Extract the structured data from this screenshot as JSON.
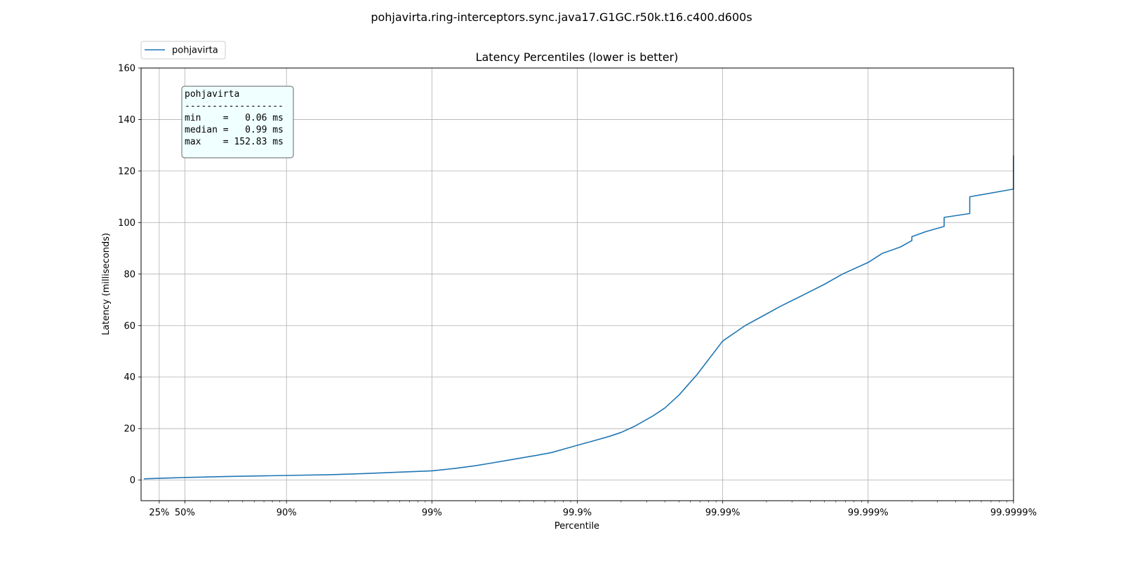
{
  "figure": {
    "suptitle": "pohjavirta.ring-interceptors.sync.java17.G1GC.r50k.t16.c400.d600s"
  },
  "chart_data": {
    "type": "line",
    "title": "Latency Percentiles (lower is better)",
    "xlabel": "Percentile",
    "ylabel": "Latency (milliseconds)",
    "x_scale": "log of 1/(1-percentile)",
    "xlim": [
      0.0,
      99.9999
    ],
    "ylim": [
      -8,
      160
    ],
    "y_ticks": [
      0,
      20,
      40,
      60,
      80,
      100,
      120,
      140,
      160
    ],
    "x_ticks": [
      {
        "value": 25,
        "label": "25%"
      },
      {
        "value": 50,
        "label": "50%"
      },
      {
        "value": 90,
        "label": "90%"
      },
      {
        "value": 99,
        "label": "99%"
      },
      {
        "value": 99.9,
        "label": "99.9%"
      },
      {
        "value": 99.99,
        "label": "99.99%"
      },
      {
        "value": 99.999,
        "label": "99.999%"
      },
      {
        "value": 99.9999,
        "label": "99.9999%"
      }
    ],
    "grid": true,
    "legend_position": "top-left",
    "series": [
      {
        "name": "pohjavirta",
        "color": "#1f77b4",
        "points": [
          [
            4.5,
            0.5
          ],
          [
            25,
            0.7
          ],
          [
            50,
            0.99
          ],
          [
            75,
            1.4
          ],
          [
            90,
            1.8
          ],
          [
            95,
            2.1
          ],
          [
            97,
            2.5
          ],
          [
            98,
            2.9
          ],
          [
            99,
            3.6
          ],
          [
            99.3,
            4.5
          ],
          [
            99.5,
            5.6
          ],
          [
            99.6,
            6.5
          ],
          [
            99.7,
            7.7
          ],
          [
            99.8,
            9.4
          ],
          [
            99.85,
            10.7
          ],
          [
            99.9,
            13.5
          ],
          [
            99.92,
            15.0
          ],
          [
            99.94,
            17.0
          ],
          [
            99.95,
            18.5
          ],
          [
            99.96,
            21.0
          ],
          [
            99.97,
            25.0
          ],
          [
            99.975,
            28.0
          ],
          [
            99.98,
            33.0
          ],
          [
            99.985,
            41.0
          ],
          [
            99.99,
            54.0
          ],
          [
            99.993,
            60.0
          ],
          [
            99.995,
            64.5
          ],
          [
            99.996,
            67.5
          ],
          [
            99.997,
            71.0
          ],
          [
            99.998,
            76.0
          ],
          [
            99.9985,
            80.0
          ],
          [
            99.999,
            84.5
          ],
          [
            99.9992,
            88.0
          ],
          [
            99.9994,
            90.5
          ],
          [
            99.9995,
            93.0
          ],
          [
            99.9995,
            94.5
          ],
          [
            99.9996,
            96.5
          ],
          [
            99.9997,
            98.5
          ],
          [
            99.9997,
            102.0
          ],
          [
            99.9998,
            103.5
          ],
          [
            99.9998,
            110.0
          ],
          [
            99.9999,
            113.0
          ],
          [
            99.9999,
            126.0
          ]
        ]
      }
    ],
    "legend": {
      "entries": [
        "pohjavirta"
      ]
    },
    "stats_box": {
      "lines": [
        "pohjavirta",
        "------------------",
        "min    =   0.06 ms",
        "median =   0.99 ms",
        "max    = 152.83 ms"
      ],
      "background": "#f0ffff"
    }
  }
}
